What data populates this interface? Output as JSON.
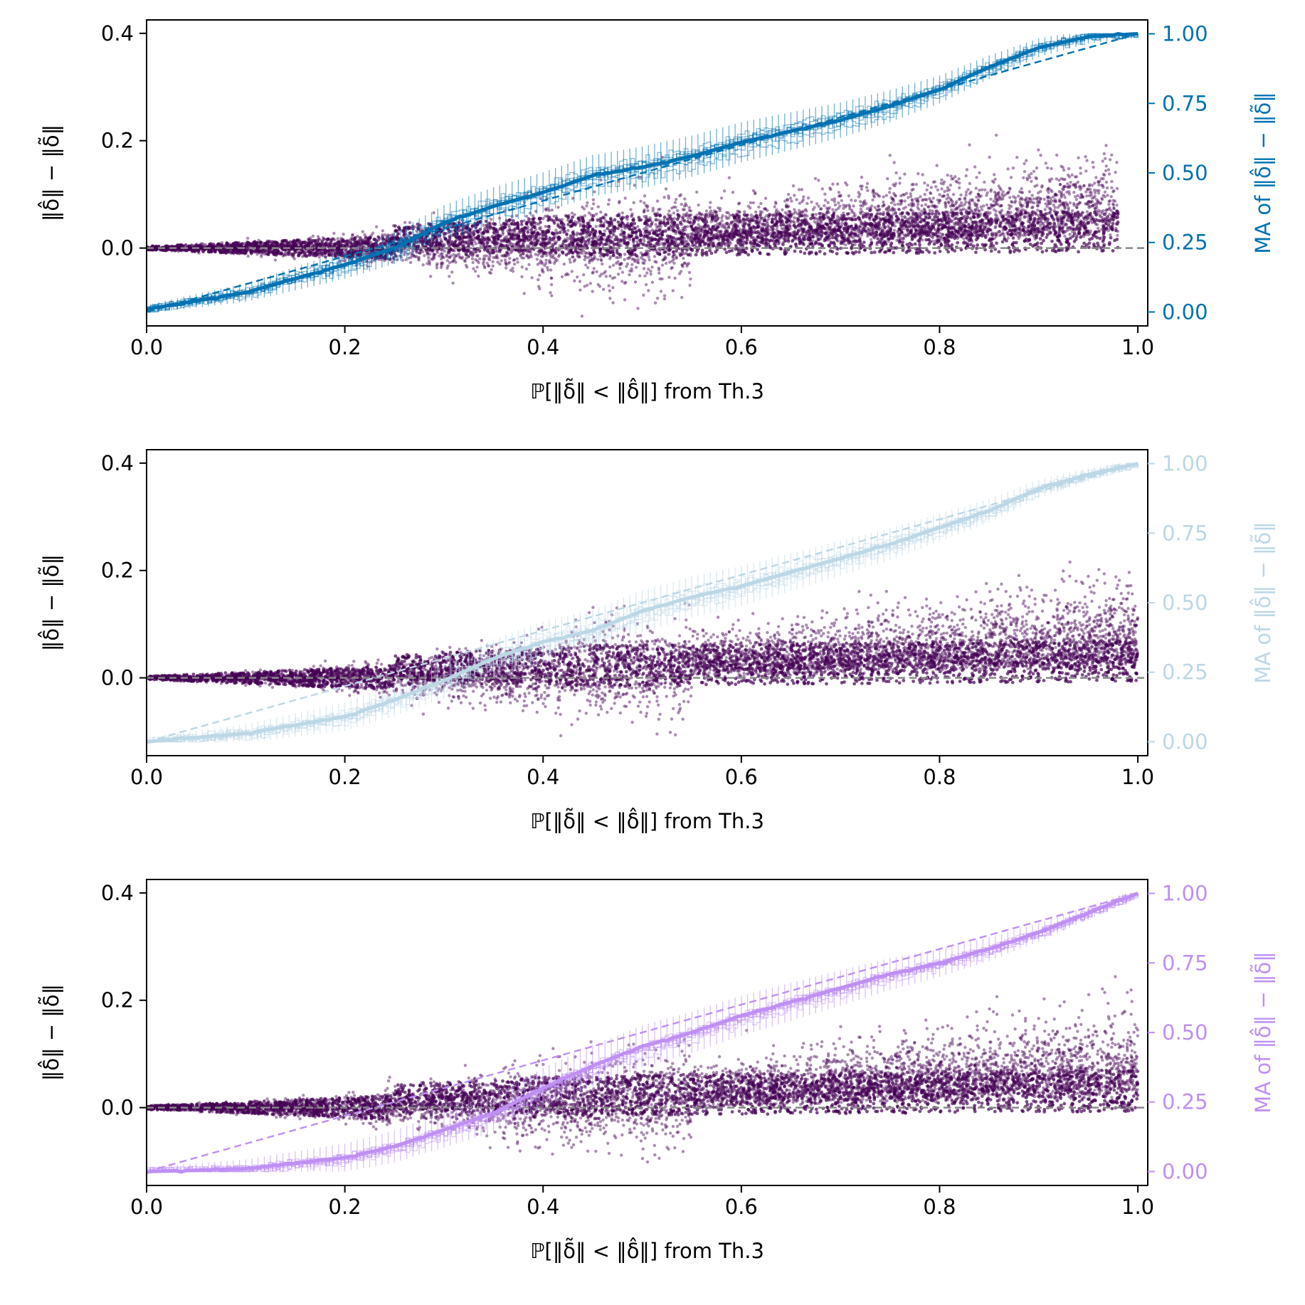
{
  "chart_data": [
    {
      "type": "scatter",
      "panel": "top",
      "xlabel": "ℙ[‖δ̃‖ < ‖δ̂‖] from Th.3",
      "ylabel_left": "‖δ̂‖ − ‖δ̃‖",
      "ylabel_right": "MA of ‖δ̂‖ − ‖δ̃‖",
      "xlim": [
        0.0,
        1.01
      ],
      "ylim_left": [
        -0.145,
        0.425
      ],
      "ylim_right": [
        -0.05,
        1.05
      ],
      "x_ticks": [
        "0.0",
        "0.2",
        "0.4",
        "0.6",
        "0.8",
        "1.0"
      ],
      "y_ticks_left": [
        "0.0",
        "0.2",
        "0.4"
      ],
      "y_ticks_right": [
        "0.00",
        "0.25",
        "0.50",
        "0.75",
        "1.00"
      ],
      "series_color": "#0072b2",
      "scatter_color": "#440154",
      "scatter_x_max": 0.98,
      "ma_curve": {
        "x": [
          0.0,
          0.1,
          0.2,
          0.25,
          0.3,
          0.35,
          0.4,
          0.45,
          0.5,
          0.55,
          0.6,
          0.65,
          0.7,
          0.75,
          0.8,
          0.85,
          0.9,
          0.95,
          1.0
        ],
        "y": [
          0.01,
          0.07,
          0.17,
          0.23,
          0.32,
          0.38,
          0.43,
          0.49,
          0.52,
          0.56,
          0.61,
          0.65,
          0.69,
          0.74,
          0.8,
          0.88,
          0.95,
          0.99,
          1.0
        ]
      },
      "diagonal_reference": {
        "x": [
          0.0,
          1.0
        ],
        "y": [
          0.0,
          1.0
        ]
      },
      "zero_line": 0.0
    },
    {
      "type": "scatter",
      "panel": "middle",
      "xlabel": "ℙ[‖δ̃‖ < ‖δ̂‖] from Th.3",
      "ylabel_left": "‖δ̂‖ − ‖δ̃‖",
      "ylabel_right": "MA of ‖δ̂‖ − ‖δ̃‖",
      "xlim": [
        0.0,
        1.01
      ],
      "ylim_left": [
        -0.145,
        0.425
      ],
      "ylim_right": [
        -0.05,
        1.05
      ],
      "x_ticks": [
        "0.0",
        "0.2",
        "0.4",
        "0.6",
        "0.8",
        "1.0"
      ],
      "y_ticks_left": [
        "0.0",
        "0.2",
        "0.4"
      ],
      "y_ticks_right": [
        "0.00",
        "0.25",
        "0.50",
        "0.75",
        "1.00"
      ],
      "series_color": "#bcd7e6",
      "scatter_color": "#440154",
      "scatter_x_max": 1.0,
      "ma_curve": {
        "x": [
          0.0,
          0.1,
          0.2,
          0.25,
          0.3,
          0.35,
          0.4,
          0.45,
          0.5,
          0.55,
          0.6,
          0.65,
          0.7,
          0.75,
          0.8,
          0.85,
          0.9,
          0.95,
          1.0
        ],
        "y": [
          0.0,
          0.03,
          0.09,
          0.15,
          0.22,
          0.3,
          0.36,
          0.4,
          0.47,
          0.52,
          0.56,
          0.61,
          0.66,
          0.71,
          0.77,
          0.83,
          0.91,
          0.96,
          1.0
        ]
      },
      "diagonal_reference": {
        "x": [
          0.0,
          1.0
        ],
        "y": [
          0.0,
          1.0
        ]
      },
      "zero_line": 0.0
    },
    {
      "type": "scatter",
      "panel": "bottom",
      "xlabel": "ℙ[‖δ̃‖ < ‖δ̂‖] from Th.3",
      "ylabel_left": "‖δ̂‖ − ‖δ̃‖",
      "ylabel_right": "MA of ‖δ̂‖ − ‖δ̃‖",
      "xlim": [
        0.0,
        1.01
      ],
      "ylim_left": [
        -0.145,
        0.425
      ],
      "ylim_right": [
        -0.05,
        1.05
      ],
      "x_ticks": [
        "0.0",
        "0.2",
        "0.4",
        "0.6",
        "0.8",
        "1.0"
      ],
      "y_ticks_left": [
        "0.0",
        "0.2",
        "0.4"
      ],
      "y_ticks_right": [
        "0.00",
        "0.25",
        "0.50",
        "0.75",
        "1.00"
      ],
      "series_color": "#bf8ff5",
      "scatter_color": "#440154",
      "scatter_x_max": 1.0,
      "ma_curve": {
        "x": [
          0.0,
          0.1,
          0.2,
          0.25,
          0.3,
          0.35,
          0.4,
          0.45,
          0.5,
          0.55,
          0.6,
          0.65,
          0.7,
          0.75,
          0.8,
          0.85,
          0.9,
          0.95,
          1.0
        ],
        "y": [
          0.0,
          0.01,
          0.05,
          0.09,
          0.15,
          0.21,
          0.3,
          0.38,
          0.45,
          0.5,
          0.56,
          0.61,
          0.66,
          0.71,
          0.75,
          0.8,
          0.86,
          0.93,
          1.0
        ]
      },
      "diagonal_reference": {
        "x": [
          0.0,
          1.0
        ],
        "y": [
          0.0,
          1.0
        ]
      },
      "zero_line": 0.0
    }
  ]
}
